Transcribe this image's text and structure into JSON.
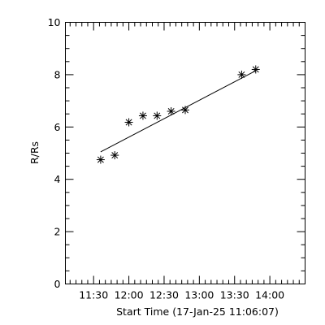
{
  "chart_data": {
    "type": "scatter",
    "xlabel": "Start Time (17-Jan-25 11:06:07)",
    "ylabel": "R/Rs",
    "x_unit": "time of day (HH:MM)",
    "xlim": [
      "11:06",
      "14:30"
    ],
    "ylim": [
      0,
      10
    ],
    "x_ticks": [
      "11:30",
      "12:00",
      "12:30",
      "13:00",
      "13:30",
      "14:00"
    ],
    "y_ticks": [
      0,
      2,
      4,
      6,
      8,
      10
    ],
    "grid": false,
    "legend": "none",
    "series": [
      {
        "marker": "asterisk",
        "points": [
          {
            "x": "11:36",
            "y": 4.75
          },
          {
            "x": "11:48",
            "y": 4.92
          },
          {
            "x": "12:00",
            "y": 6.18
          },
          {
            "x": "12:12",
            "y": 6.43
          },
          {
            "x": "12:24",
            "y": 6.43
          },
          {
            "x": "12:36",
            "y": 6.6
          },
          {
            "x": "12:48",
            "y": 6.65
          },
          {
            "x": "13:36",
            "y": 8.0
          },
          {
            "x": "13:48",
            "y": 8.2
          }
        ]
      }
    ],
    "fit_line": {
      "from": {
        "x": "11:36",
        "y": 5.05
      },
      "to": {
        "x": "13:48",
        "y": 8.15
      }
    }
  }
}
